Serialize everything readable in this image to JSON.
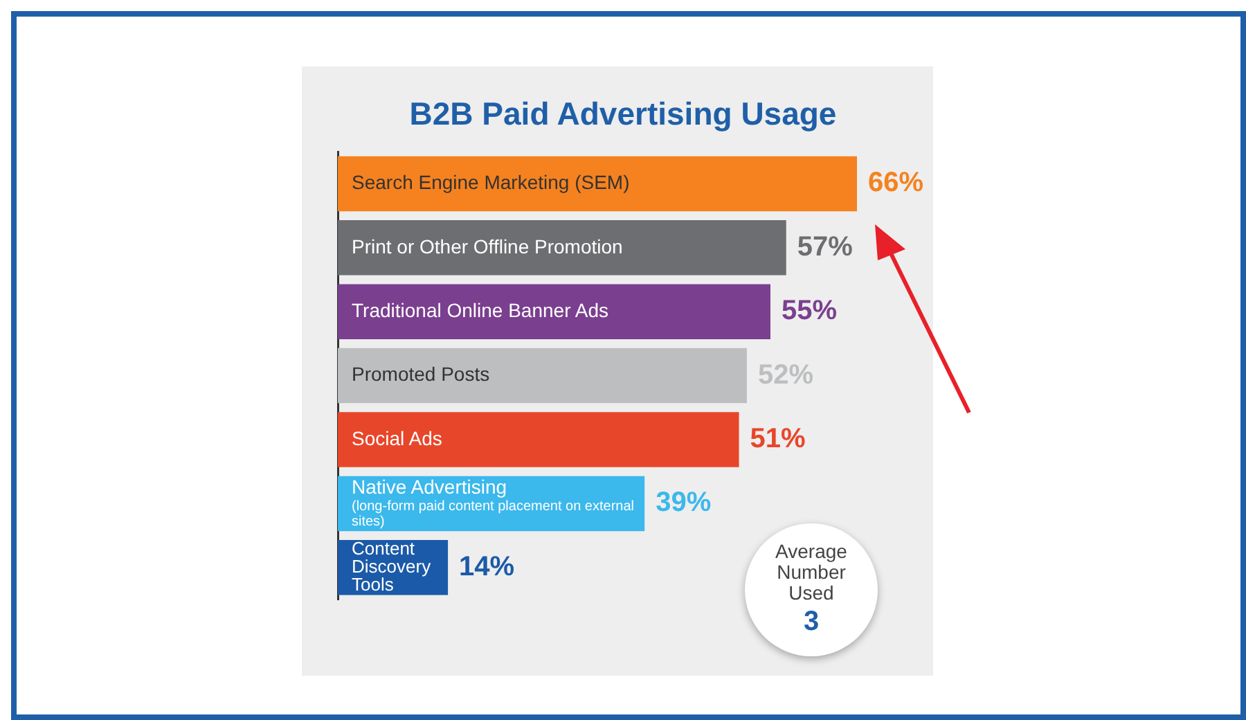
{
  "chart_data": {
    "type": "bar",
    "title": "B2B Paid Advertising Usage",
    "orientation": "horizontal",
    "categories": [
      "Search Engine Marketing (SEM)",
      "Print or Other Offline Promotion",
      "Traditional Online Banner Ads",
      "Promoted Posts",
      "Social Ads",
      "Native Advertising (long-form paid content placement on external sites)",
      "Content Discovery Tools"
    ],
    "values": [
      66,
      57,
      55,
      52,
      51,
      39,
      14
    ],
    "colors": [
      "#f5821f",
      "#6d6e71",
      "#7b3f8f",
      "#bcbec0",
      "#e8462a",
      "#3bb8ec",
      "#1b5aa8"
    ],
    "value_labels": [
      "66%",
      "57%",
      "55%",
      "52%",
      "51%",
      "39%",
      "14%"
    ],
    "annotations": [
      "Average Number Used",
      "3"
    ]
  }
}
